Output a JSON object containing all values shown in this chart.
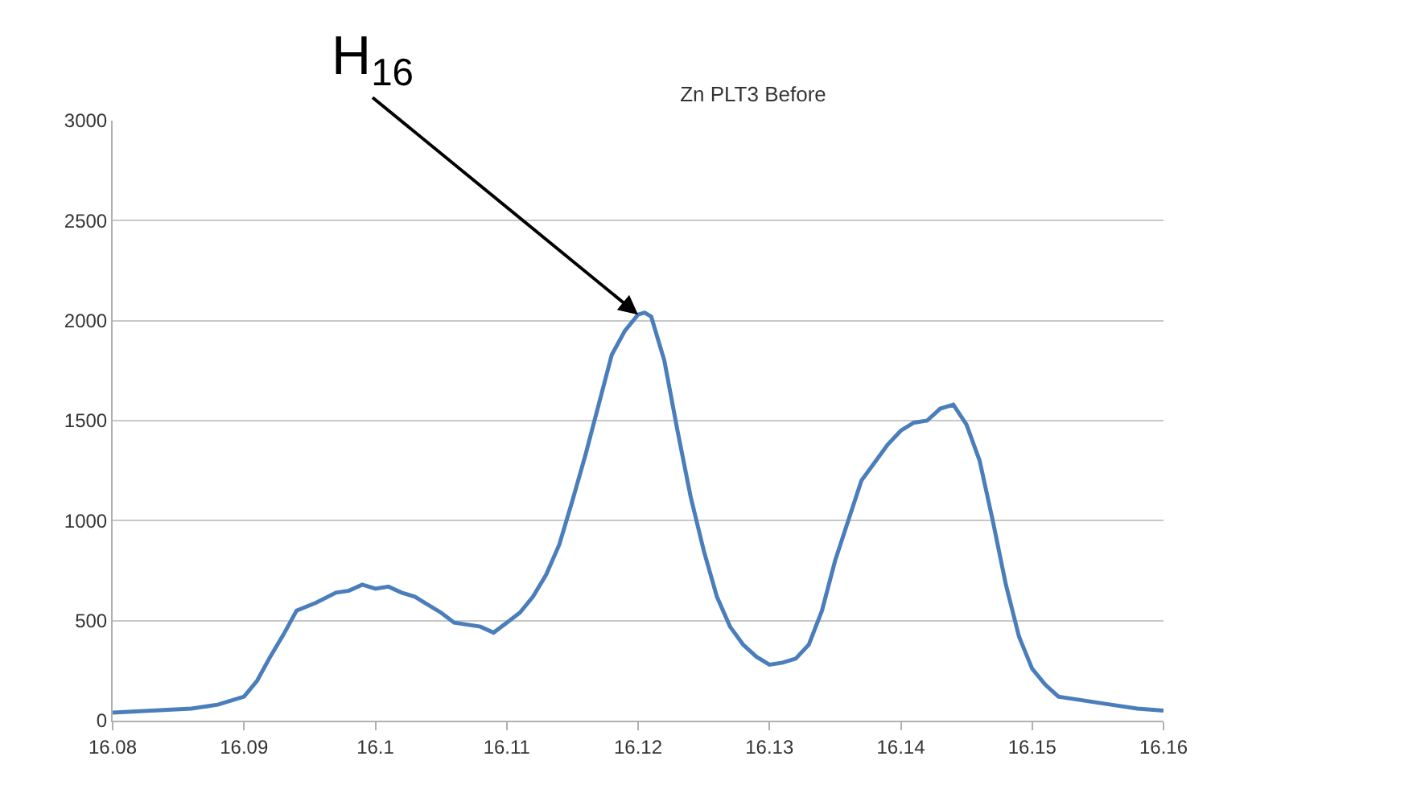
{
  "chart_data": {
    "type": "line",
    "title": "Zn PLT3 Before",
    "x": [
      16.08,
      16.083,
      16.086,
      16.088,
      16.09,
      16.091,
      16.092,
      16.093,
      16.094,
      16.0955,
      16.097,
      16.098,
      16.099,
      16.1,
      16.101,
      16.102,
      16.103,
      16.104,
      16.105,
      16.106,
      16.107,
      16.108,
      16.109,
      16.11,
      16.111,
      16.112,
      16.113,
      16.114,
      16.115,
      16.116,
      16.117,
      16.118,
      16.119,
      16.12,
      16.1205,
      16.121,
      16.122,
      16.123,
      16.124,
      16.125,
      16.126,
      16.127,
      16.128,
      16.129,
      16.13,
      16.131,
      16.132,
      16.133,
      16.134,
      16.135,
      16.136,
      16.137,
      16.138,
      16.139,
      16.14,
      16.141,
      16.142,
      16.143,
      16.144,
      16.145,
      16.146,
      16.147,
      16.148,
      16.149,
      16.15,
      16.151,
      16.152,
      16.154,
      16.156,
      16.158,
      16.16
    ],
    "series": [
      {
        "color": "#4a7ebb",
        "values": [
          40,
          50,
          60,
          80,
          120,
          200,
          320,
          430,
          550,
          590,
          640,
          650,
          680,
          660,
          670,
          640,
          620,
          580,
          540,
          490,
          480,
          470,
          440,
          490,
          540,
          620,
          730,
          880,
          1100,
          1330,
          1580,
          1830,
          1950,
          2030,
          2040,
          2020,
          1800,
          1450,
          1120,
          850,
          620,
          470,
          380,
          320,
          280,
          290,
          310,
          380,
          550,
          800,
          1000,
          1200,
          1290,
          1380,
          1450,
          1490,
          1500,
          1560,
          1580,
          1480,
          1300,
          1000,
          680,
          420,
          260,
          180,
          120,
          100,
          80,
          60,
          50
        ]
      }
    ],
    "xlim": [
      16.08,
      16.16
    ],
    "xticks": [
      16.08,
      16.09,
      16.1,
      16.11,
      16.12,
      16.13,
      16.14,
      16.15,
      16.16
    ],
    "ylim": [
      0,
      3000
    ],
    "yticks": [
      0,
      500,
      1000,
      1500,
      2000,
      2500,
      3000
    ],
    "grid": "y",
    "marker": "none",
    "line_style": "solid",
    "annotations": [
      {
        "text": "H$_{16}$",
        "x": 16.12,
        "y": 2030
      }
    ]
  }
}
